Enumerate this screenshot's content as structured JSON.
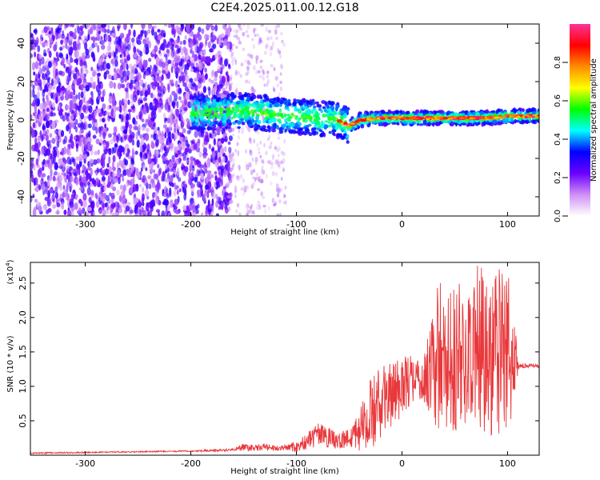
{
  "title": "C2E4.2025.011.00.12.G18",
  "chart_data": [
    {
      "type": "heatmap",
      "xlabel": "Height of straight line (km)",
      "ylabel": "Frequency (Hz)",
      "xlim": [
        -352,
        130
      ],
      "ylim": [
        -50,
        50
      ],
      "xticks": [
        -300,
        -200,
        -100,
        0,
        100
      ],
      "yticks": [
        -40,
        -20,
        0,
        20,
        40
      ],
      "grid": false,
      "colorbar": {
        "label": "Normalized spectral amplitude",
        "range": [
          0,
          1
        ],
        "ticks": [
          "0.0",
          "0.2",
          "0.4",
          "0.6",
          "0.8"
        ],
        "colors": [
          "#ffffff",
          "#d08ff5",
          "#6a00ff",
          "#0000ff",
          "#00ffff",
          "#00ff00",
          "#ffff00",
          "#ff8c00",
          "#ff0000",
          "#ff3399"
        ]
      },
      "ridge": {
        "x": [
          -180,
          -150,
          -120,
          -100,
          -80,
          -60,
          -50,
          -40,
          -20,
          0,
          20,
          40,
          60,
          80,
          100,
          130
        ],
        "y": [
          4,
          5,
          3,
          2,
          1,
          0,
          -3,
          0,
          1,
          1,
          1,
          1,
          1,
          1,
          2,
          2
        ]
      }
    },
    {
      "type": "line",
      "xlabel": "Height of straight line (km)",
      "ylabel": "SNR (10 * v/v)",
      "yunit_multiplier": "(x10",
      "yunit_exponent": "4",
      "ylabel_suffix": ")",
      "xlim": [
        -352,
        130
      ],
      "ylim": [
        0,
        2.8
      ],
      "xticks": [
        -300,
        -200,
        -100,
        0,
        100
      ],
      "yticks": [
        0.5,
        1.0,
        1.5,
        2.0,
        2.5
      ],
      "ytick_labels": [
        "0.5",
        "1.0",
        "1.5",
        "2.0",
        "2.5"
      ],
      "grid": false,
      "series": [
        {
          "color": "#e8383b",
          "x": [
            -352,
            -300,
            -250,
            -200,
            -160,
            -150,
            -140,
            -130,
            -120,
            -110,
            -100,
            -90,
            -80,
            -70,
            -60,
            -50,
            -40,
            -30,
            -20,
            -10,
            0,
            10,
            20,
            30,
            35,
            40,
            50,
            60,
            70,
            80,
            90,
            100,
            105,
            110,
            120,
            130
          ],
          "y": [
            0.03,
            0.04,
            0.05,
            0.06,
            0.08,
            0.12,
            0.1,
            0.12,
            0.1,
            0.12,
            0.12,
            0.2,
            0.3,
            0.25,
            0.2,
            0.25,
            0.4,
            0.6,
            0.75,
            0.9,
            1.0,
            1.1,
            1.1,
            1.3,
            1.5,
            1.3,
            1.5,
            1.3,
            1.6,
            1.5,
            1.5,
            1.5,
            1.4,
            1.3,
            1.3,
            1.3
          ],
          "amp": [
            0.01,
            0.01,
            0.01,
            0.01,
            0.02,
            0.06,
            0.04,
            0.05,
            0.04,
            0.05,
            0.08,
            0.12,
            0.18,
            0.15,
            0.12,
            0.15,
            0.35,
            0.5,
            0.55,
            0.5,
            0.45,
            0.35,
            0.3,
            0.8,
            1.2,
            1.0,
            1.2,
            1.1,
            1.2,
            1.2,
            1.3,
            1.2,
            1.0,
            0.05,
            0.03,
            0.03
          ]
        }
      ]
    }
  ]
}
